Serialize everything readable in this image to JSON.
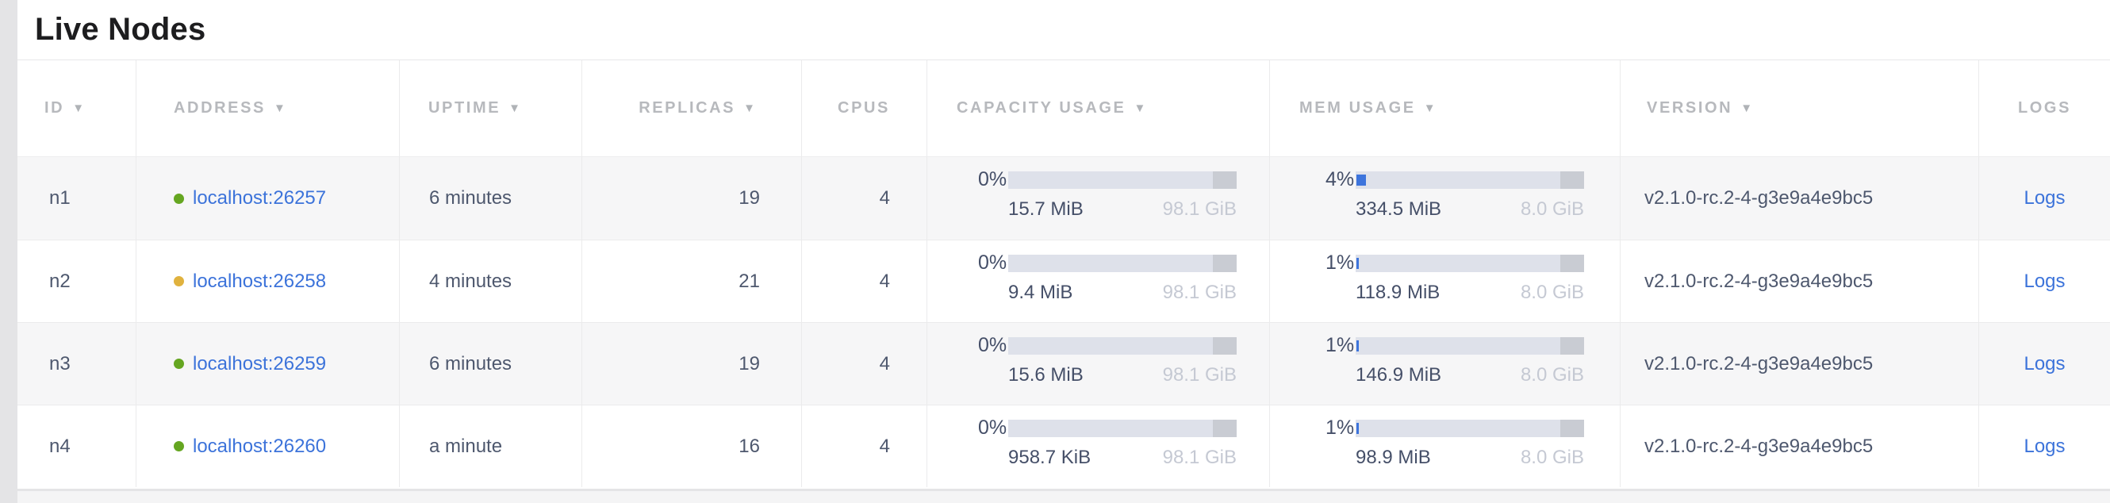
{
  "page": {
    "title": "Live Nodes"
  },
  "colors": {
    "link_blue": "#3c73da",
    "healthy_dot_green": "#65a621",
    "suspect_dot_yellow": "#e0b23e",
    "bar_track": "#dee1ea",
    "bar_end_cap": "#c9ccd3",
    "bar_fill_blue": "#3d74dc",
    "header_text": "#b7b9bd",
    "cell_text": "#4e586e",
    "muted_total_text": "#c5c9d3",
    "alt_row_bg": "#f6f6f7"
  },
  "table": {
    "sort_indicator": "▼",
    "columns": [
      {
        "label": "ID",
        "sortable": true
      },
      {
        "label": "ADDRESS",
        "sortable": true
      },
      {
        "label": "UPTIME",
        "sortable": true
      },
      {
        "label": "REPLICAS",
        "sortable": true
      },
      {
        "label": "CPUS",
        "sortable": false
      },
      {
        "label": "CAPACITY USAGE",
        "sortable": true
      },
      {
        "label": "MEM USAGE",
        "sortable": true
      },
      {
        "label": "VERSION",
        "sortable": true
      },
      {
        "label": "LOGS",
        "sortable": false
      }
    ],
    "rows": [
      {
        "id": "n1",
        "status_color": "#65a621",
        "address": "localhost:26257",
        "uptime": "6 minutes",
        "replicas": "19",
        "cpus": "4",
        "capacity": {
          "percent": "0%",
          "fill_pct": 0,
          "used": "15.7 MiB",
          "total": "98.1 GiB"
        },
        "memory": {
          "percent": "4%",
          "fill_pct": 4,
          "used": "334.5 MiB",
          "total": "8.0 GiB"
        },
        "version": "v2.1.0-rc.2-4-g3e9a4e9bc5",
        "logs": "Logs"
      },
      {
        "id": "n2",
        "status_color": "#e0b23e",
        "address": "localhost:26258",
        "uptime": "4 minutes",
        "replicas": "21",
        "cpus": "4",
        "capacity": {
          "percent": "0%",
          "fill_pct": 0,
          "used": "9.4 MiB",
          "total": "98.1 GiB"
        },
        "memory": {
          "percent": "1%",
          "fill_pct": 1,
          "used": "118.9 MiB",
          "total": "8.0 GiB"
        },
        "version": "v2.1.0-rc.2-4-g3e9a4e9bc5",
        "logs": "Logs"
      },
      {
        "id": "n3",
        "status_color": "#65a621",
        "address": "localhost:26259",
        "uptime": "6 minutes",
        "replicas": "19",
        "cpus": "4",
        "capacity": {
          "percent": "0%",
          "fill_pct": 0,
          "used": "15.6 MiB",
          "total": "98.1 GiB"
        },
        "memory": {
          "percent": "1%",
          "fill_pct": 1,
          "used": "146.9 MiB",
          "total": "8.0 GiB"
        },
        "version": "v2.1.0-rc.2-4-g3e9a4e9bc5",
        "logs": "Logs"
      },
      {
        "id": "n4",
        "status_color": "#65a621",
        "address": "localhost:26260",
        "uptime": "a minute",
        "replicas": "16",
        "cpus": "4",
        "capacity": {
          "percent": "0%",
          "fill_pct": 0,
          "used": "958.7 KiB",
          "total": "98.1 GiB"
        },
        "memory": {
          "percent": "1%",
          "fill_pct": 1,
          "used": "98.9 MiB",
          "total": "8.0 GiB"
        },
        "version": "v2.1.0-rc.2-4-g3e9a4e9bc5",
        "logs": "Logs"
      }
    ]
  }
}
